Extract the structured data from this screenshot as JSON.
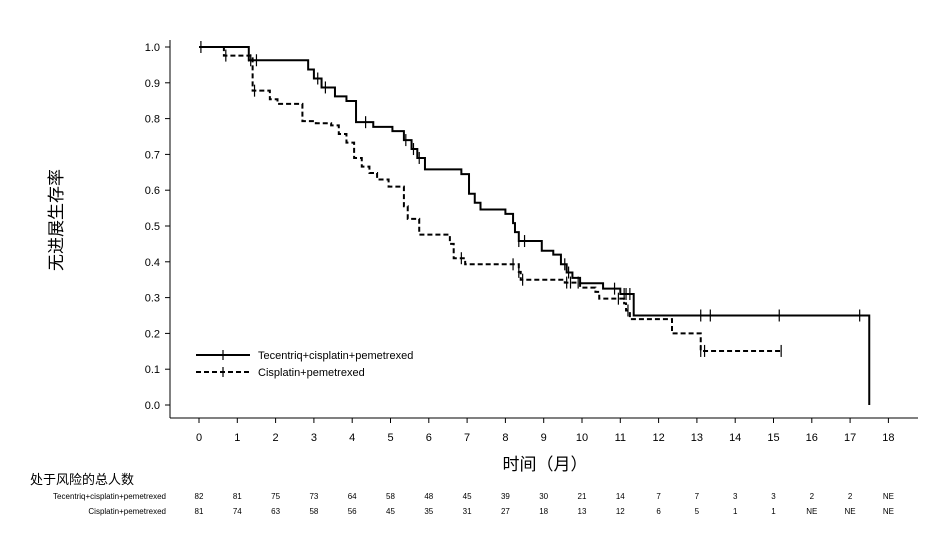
{
  "chart_data": {
    "type": "line",
    "title": "",
    "xlabel": "时间（月）",
    "ylabel": "无进展生存率",
    "xlim": [
      0,
      18
    ],
    "ylim": [
      0,
      1.0
    ],
    "x_ticks": [
      "0",
      "1",
      "2",
      "3",
      "4",
      "5",
      "6",
      "7",
      "8",
      "9",
      "10",
      "11",
      "12",
      "13",
      "14",
      "15",
      "16",
      "17",
      "18"
    ],
    "y_ticks": [
      "0.0",
      "0.1",
      "0.2",
      "0.3",
      "0.4",
      "0.5",
      "0.6",
      "0.7",
      "0.8",
      "0.9",
      "1.0"
    ],
    "legend_position": "bottom-left",
    "series": [
      {
        "name": "Tecentriq+cisplatin+pemetrexed",
        "style": "solid",
        "color": "#000000",
        "steps": [
          [
            0,
            1.0
          ],
          [
            1.3,
            0.963
          ],
          [
            2.85,
            0.937
          ],
          [
            3.0,
            0.912
          ],
          [
            3.2,
            0.887
          ],
          [
            3.55,
            0.862
          ],
          [
            3.85,
            0.849
          ],
          [
            4.1,
            0.79
          ],
          [
            4.55,
            0.777
          ],
          [
            5.05,
            0.765
          ],
          [
            5.35,
            0.74
          ],
          [
            5.55,
            0.715
          ],
          [
            5.7,
            0.69
          ],
          [
            5.9,
            0.658
          ],
          [
            6.85,
            0.645
          ],
          [
            7.05,
            0.59
          ],
          [
            7.2,
            0.565
          ],
          [
            7.35,
            0.546
          ],
          [
            8.0,
            0.534
          ],
          [
            8.2,
            0.508
          ],
          [
            8.25,
            0.483
          ],
          [
            8.35,
            0.458
          ],
          [
            8.95,
            0.431
          ],
          [
            9.25,
            0.42
          ],
          [
            9.45,
            0.393
          ],
          [
            9.6,
            0.37
          ],
          [
            9.75,
            0.355
          ],
          [
            9.95,
            0.34
          ],
          [
            10.55,
            0.325
          ],
          [
            11.0,
            0.31
          ],
          [
            11.35,
            0.25
          ],
          [
            17.5,
            0.0
          ]
        ],
        "censor_x": [
          0.05,
          1.35,
          1.5,
          3.1,
          3.3,
          4.35,
          5.4,
          5.6,
          5.75,
          8.35,
          8.5,
          9.55,
          9.65,
          10.85,
          11.1,
          11.15,
          11.25,
          13.1,
          13.35,
          15.15,
          17.25
        ],
        "end_x": 17.5
      },
      {
        "name": "Cisplatin+pemetrexed",
        "style": "dashed",
        "color": "#000000",
        "steps": [
          [
            0,
            1.0
          ],
          [
            0.65,
            0.976
          ],
          [
            1.4,
            0.878
          ],
          [
            1.85,
            0.854
          ],
          [
            2.05,
            0.841
          ],
          [
            2.7,
            0.793
          ],
          [
            3.05,
            0.787
          ],
          [
            3.45,
            0.781
          ],
          [
            3.65,
            0.757
          ],
          [
            3.85,
            0.733
          ],
          [
            4.05,
            0.69
          ],
          [
            4.25,
            0.666
          ],
          [
            4.45,
            0.648
          ],
          [
            4.65,
            0.63
          ],
          [
            4.95,
            0.61
          ],
          [
            5.35,
            0.555
          ],
          [
            5.45,
            0.52
          ],
          [
            5.75,
            0.476
          ],
          [
            6.55,
            0.45
          ],
          [
            6.65,
            0.41
          ],
          [
            6.95,
            0.393
          ],
          [
            8.35,
            0.372
          ],
          [
            8.4,
            0.35
          ],
          [
            9.55,
            0.342
          ],
          [
            9.95,
            0.328
          ],
          [
            10.35,
            0.316
          ],
          [
            10.45,
            0.297
          ],
          [
            11.1,
            0.284
          ],
          [
            11.15,
            0.264
          ],
          [
            11.25,
            0.24
          ],
          [
            12.35,
            0.2
          ],
          [
            13.1,
            0.151
          ],
          [
            15.2,
            0.151
          ]
        ],
        "censor_x": [
          0.7,
          1.3,
          1.45,
          6.85,
          8.2,
          8.35,
          8.45,
          9.6,
          9.7,
          9.9,
          10.95,
          11.2,
          13.1,
          13.2,
          15.2
        ],
        "end_x": 15.2
      }
    ],
    "risk_table": {
      "title": "处于风险的总人数",
      "rows": [
        {
          "name": "Tecentriq+cisplatin+pemetrexed",
          "values": [
            "82",
            "81",
            "75",
            "73",
            "64",
            "58",
            "48",
            "45",
            "39",
            "30",
            "21",
            "14",
            "7",
            "7",
            "3",
            "3",
            "2",
            "2",
            "NE"
          ]
        },
        {
          "name": "Cisplatin+pemetrexed",
          "values": [
            "81",
            "74",
            "63",
            "58",
            "56",
            "45",
            "35",
            "31",
            "27",
            "18",
            "13",
            "12",
            "6",
            "5",
            "1",
            "1",
            "NE",
            "NE",
            "NE"
          ]
        }
      ]
    }
  }
}
